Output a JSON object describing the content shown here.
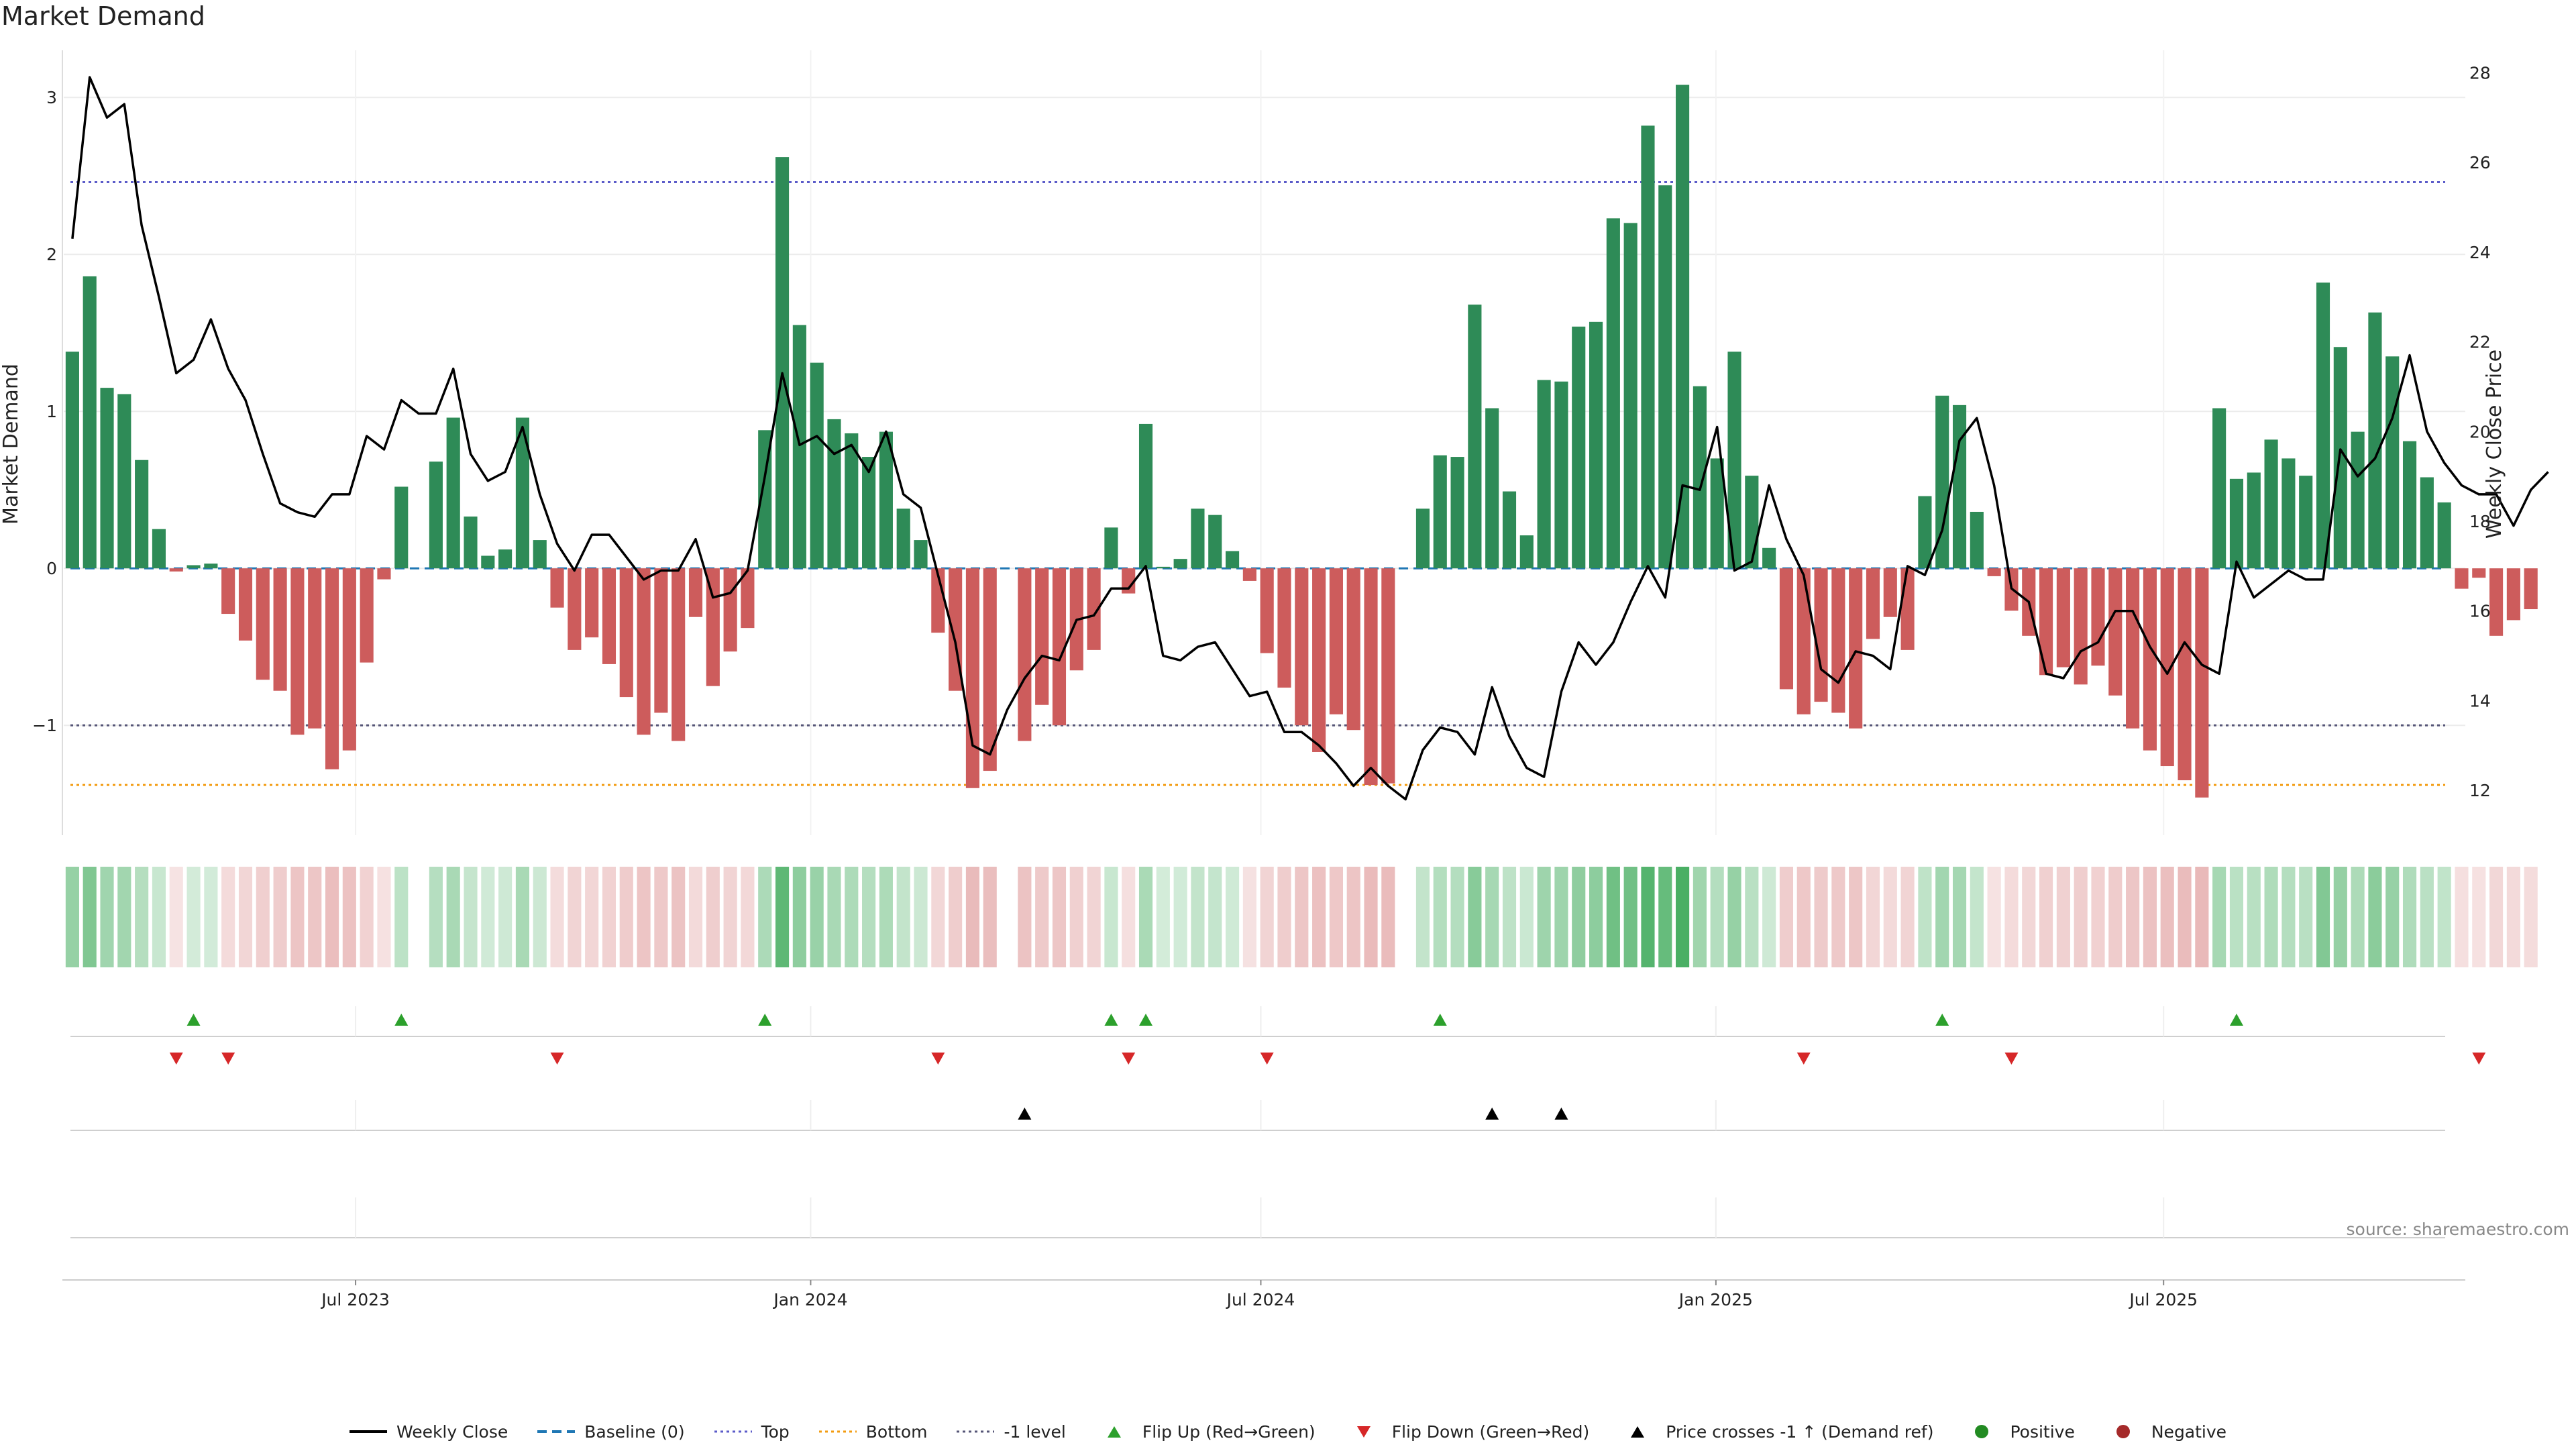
{
  "chart_data": {
    "type": "bar",
    "title": "Market Demand",
    "ylabel": "Market Demand",
    "y2label": "Weekly Close Price",
    "ylim": [
      -1.7,
      3.3
    ],
    "y2lim": [
      11.0,
      28.5
    ],
    "yticks": [
      -1,
      0,
      1,
      2,
      3
    ],
    "yticks_labels": [
      "−1",
      "0",
      "1",
      "2",
      "3"
    ],
    "y2ticks": [
      12,
      14,
      16,
      18,
      20,
      22,
      24,
      26,
      28
    ],
    "x_start": "2023-03-05",
    "x_end": "2025-10-31",
    "xticks": [
      {
        "date": "2023-07-01",
        "label": "Jul 2023"
      },
      {
        "date": "2024-01-01",
        "label": "Jan 2024"
      },
      {
        "date": "2024-07-01",
        "label": "Jul 2024"
      },
      {
        "date": "2025-01-01",
        "label": "Jan 2025"
      },
      {
        "date": "2025-07-01",
        "label": "Jul 2025"
      }
    ],
    "first_week": "2023-03-05",
    "reference_lines": {
      "top": 2.46,
      "bottom": -1.38,
      "minus_one": -1.0,
      "baseline": 0
    },
    "colors": {
      "positive": "#2e8b57",
      "negative": "#cd5c5c",
      "price": "#000000",
      "top": "#5b5bc9",
      "bottom": "#f39c12",
      "minus_one": "#555577",
      "baseline": "#1f77b4",
      "flip_up": "#2ca02c",
      "flip_down": "#d62728",
      "cross": "#000000"
    },
    "demand": [
      1.38,
      1.86,
      1.15,
      1.11,
      0.69,
      0.25,
      -0.02,
      0.02,
      0.03,
      -0.29,
      -0.46,
      -0.71,
      -0.78,
      -1.06,
      -1.02,
      -1.28,
      -1.16,
      -0.6,
      -0.07,
      0.52,
      0,
      0.68,
      0.96,
      0.33,
      0.08,
      0.12,
      0.96,
      0.18,
      -0.25,
      -0.52,
      -0.44,
      -0.61,
      -0.82,
      -1.06,
      -0.92,
      -1.1,
      -0.31,
      -0.75,
      -0.53,
      -0.38,
      0.88,
      2.62,
      1.55,
      1.31,
      0.95,
      0.86,
      0.71,
      0.87,
      0.38,
      0.18,
      -0.41,
      -0.78,
      -1.4,
      -1.29,
      0,
      -1.1,
      -0.87,
      -1.0,
      -0.65,
      -0.52,
      0.26,
      -0.16,
      0.92,
      0.01,
      0.06,
      0.38,
      0.34,
      0.11,
      -0.08,
      -0.54,
      -0.76,
      -1.0,
      -1.17,
      -0.93,
      -1.03,
      -1.38,
      -1.37,
      0,
      0.38,
      0.72,
      0.71,
      1.68,
      1.02,
      0.49,
      0.21,
      1.2,
      1.19,
      1.54,
      1.57,
      2.23,
      2.2,
      2.82,
      2.44,
      3.08,
      1.16,
      0.7,
      1.38,
      0.59,
      0.13,
      -0.77,
      -0.93,
      -0.85,
      -0.92,
      -1.02,
      -0.45,
      -0.31,
      -0.52,
      0.46,
      1.1,
      1.04,
      0.36,
      -0.05,
      -0.27,
      -0.43,
      -0.68,
      -0.63,
      -0.74,
      -0.62,
      -0.81,
      -1.02,
      -1.16,
      -1.26,
      -1.35,
      -1.46,
      1.02,
      0.57,
      0.61,
      0.82,
      0.7,
      0.59,
      1.82,
      1.41,
      0.87,
      1.63,
      1.35,
      0.81,
      0.58,
      0.42,
      -0.13,
      -0.06,
      -0.43,
      -0.33,
      -0.26
    ],
    "price": [
      24.3,
      27.9,
      27.0,
      27.3,
      24.6,
      23.0,
      21.3,
      21.6,
      22.5,
      21.4,
      20.7,
      19.5,
      18.4,
      18.2,
      18.1,
      18.6,
      18.6,
      19.9,
      19.6,
      20.7,
      20.4,
      20.4,
      21.4,
      19.5,
      18.9,
      19.1,
      20.1,
      18.6,
      17.5,
      16.9,
      17.7,
      17.7,
      17.2,
      16.7,
      16.9,
      16.9,
      17.6,
      16.3,
      16.4,
      16.9,
      19.0,
      21.3,
      19.7,
      19.9,
      19.5,
      19.7,
      19.1,
      20.0,
      18.6,
      18.3,
      16.8,
      15.3,
      13.0,
      12.8,
      13.8,
      14.5,
      15.0,
      14.9,
      15.8,
      15.9,
      16.5,
      16.5,
      17.0,
      15.0,
      14.9,
      15.2,
      15.3,
      14.7,
      14.1,
      14.2,
      13.3,
      13.3,
      13.0,
      12.6,
      12.1,
      12.5,
      12.1,
      11.8,
      12.9,
      13.4,
      13.3,
      12.8,
      14.3,
      13.2,
      12.5,
      12.3,
      14.2,
      15.3,
      14.8,
      15.3,
      16.2,
      17.0,
      16.3,
      18.8,
      18.7,
      20.1,
      16.9,
      17.1,
      18.8,
      17.6,
      16.8,
      14.7,
      14.4,
      15.1,
      15.0,
      14.7,
      17.0,
      16.8,
      17.8,
      19.8,
      20.3,
      18.8,
      16.5,
      16.2,
      14.6,
      14.5,
      15.1,
      15.3,
      16.0,
      16.0,
      15.2,
      14.6,
      15.3,
      14.8,
      14.6,
      17.1,
      16.3,
      16.6,
      16.9,
      16.7,
      16.7,
      19.6,
      19.0,
      19.4,
      20.3,
      21.7,
      20.0,
      19.3,
      18.8,
      18.6,
      18.6,
      17.9,
      18.7,
      19.1
    ],
    "flip_up_weeks": [
      7,
      19,
      40,
      60,
      62,
      79,
      108,
      125
    ],
    "flip_down_weeks": [
      6,
      9,
      28,
      50,
      61,
      69,
      100,
      112,
      139
    ],
    "cross_weeks": [
      55,
      82,
      86
    ],
    "signal_rows": [
      "flip-up",
      "flip-down",
      "price-cross",
      "empty"
    ],
    "source": "source: sharemaestro.com"
  },
  "legend": [
    {
      "key": "price",
      "label": "Weekly Close"
    },
    {
      "key": "baseline",
      "label": "Baseline (0)"
    },
    {
      "key": "top",
      "label": "Top"
    },
    {
      "key": "bottom",
      "label": "Bottom"
    },
    {
      "key": "minus_one",
      "label": "-1 level"
    },
    {
      "key": "flip_up",
      "label": "Flip Up (Red→Green)"
    },
    {
      "key": "flip_down",
      "label": "Flip Down (Green→Red)"
    },
    {
      "key": "cross",
      "label": "Price crosses -1 ↑ (Demand ref)"
    },
    {
      "key": "positive",
      "label": "Positive"
    },
    {
      "key": "negative",
      "label": "Negative"
    }
  ]
}
